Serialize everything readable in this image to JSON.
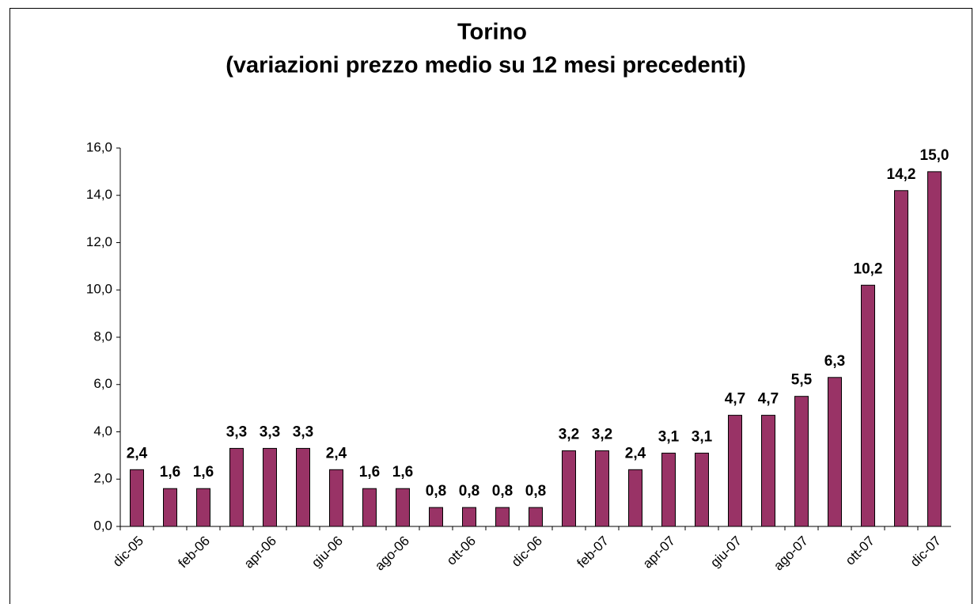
{
  "chart_data": {
    "type": "bar",
    "title": "Torino",
    "subtitle": "(variazioni prezzo medio su 12 mesi precedenti)",
    "categories": [
      "dic-05",
      null,
      "feb-06",
      null,
      "apr-06",
      null,
      "giu-06",
      null,
      "ago-06",
      null,
      "ott-06",
      null,
      "dic-06",
      null,
      "feb-07",
      null,
      "apr-07",
      null,
      "giu-07",
      null,
      "ago-07",
      null,
      "ott-07",
      null,
      "dic-07"
    ],
    "values": [
      2.4,
      1.6,
      1.6,
      3.3,
      3.3,
      3.3,
      2.4,
      1.6,
      1.6,
      0.8,
      0.8,
      0.8,
      0.8,
      3.2,
      3.2,
      2.4,
      3.1,
      3.1,
      4.7,
      4.7,
      5.5,
      6.3,
      10.2,
      14.2,
      15.0
    ],
    "value_labels": [
      "2,4",
      "1,6",
      "1,6",
      "3,3",
      "3,3",
      "3,3",
      "2,4",
      "1,6",
      "1,6",
      "0,8",
      "0,8",
      "0,8",
      "0,8",
      "3,2",
      "3,2",
      "2,4",
      "3,1",
      "3,1",
      "4,7",
      "4,7",
      "5,5",
      "6,3",
      "10,2",
      "14,2",
      "15,0"
    ],
    "color": "#993366",
    "ylim": [
      0,
      16
    ],
    "yticks": [
      {
        "value": 0,
        "label": "0,0"
      },
      {
        "value": 2,
        "label": "2,0"
      },
      {
        "value": 4,
        "label": "4,0"
      },
      {
        "value": 6,
        "label": "6,0"
      },
      {
        "value": 8,
        "label": "8,0"
      },
      {
        "value": 10,
        "label": "10,0"
      },
      {
        "value": 12,
        "label": "12,0"
      },
      {
        "value": 14,
        "label": "14,0"
      },
      {
        "value": 16,
        "label": "16,0"
      }
    ],
    "grid": false
  }
}
